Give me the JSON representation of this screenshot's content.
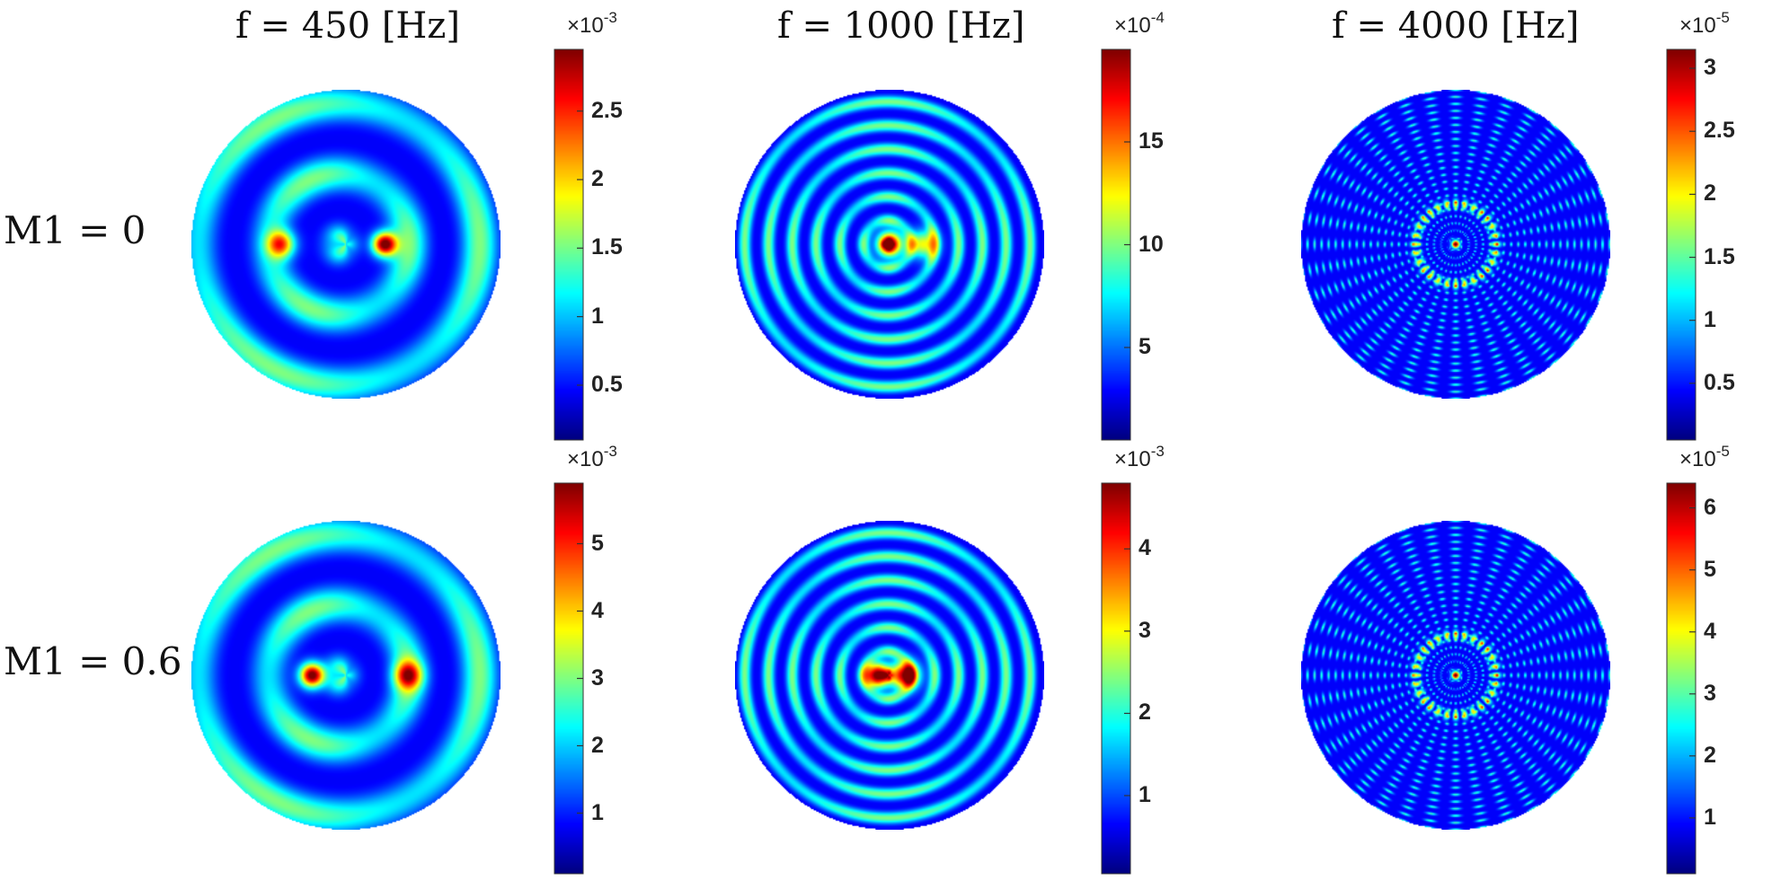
{
  "chart_data": {
    "type": "heatmap",
    "column_titles": [
      "f = 450 [Hz]",
      "f = 1000 [Hz]",
      "f = 4000 [Hz]"
    ],
    "row_labels": [
      "M1 = 0",
      "M1 = 0.6"
    ],
    "colormap": "jet",
    "panels": [
      {
        "row": "M1 = 0",
        "column": "f = 450 [Hz]",
        "colorbar": {
          "exponent": "×10-3",
          "ticks": [
            "0.5",
            "1",
            "1.5",
            "2",
            "2.5"
          ],
          "tick_values": [
            0.5,
            1,
            1.5,
            2,
            2.5
          ],
          "range": [
            0.1,
            2.95
          ]
        },
        "peak_max": 2.95,
        "rings": 2.2,
        "spokes": 3,
        "source_offset": 0.25,
        "secondary_lobe": {
          "offset": -0.42,
          "level": 0.62
        }
      },
      {
        "row": "M1 = 0",
        "column": "f = 1000 [Hz]",
        "colorbar": {
          "exponent": "×10-4",
          "ticks": [
            "5",
            "10",
            "15"
          ],
          "tick_values": [
            5,
            10,
            15
          ],
          "range": [
            0.5,
            19.5
          ]
        },
        "peak_max": 19.5,
        "rings": 6.5,
        "spokes": 4,
        "source_offset": 0.0,
        "secondary_lobe": {
          "offset": 0.22,
          "level": 0.5
        }
      },
      {
        "row": "M1 = 0",
        "column": "f = 4000 [Hz]",
        "colorbar": {
          "exponent": "×10-5",
          "ticks": [
            "0.5",
            "1",
            "1.5",
            "2",
            "2.5",
            "3"
          ],
          "tick_values": [
            0.5,
            1,
            1.5,
            2,
            2.5,
            3
          ],
          "range": [
            0.05,
            3.15
          ]
        },
        "peak_max": 3.15,
        "rings": 22,
        "spokes": 36,
        "source_offset": 0.0,
        "secondary_lobe": {
          "offset": 0.0,
          "level": 0.0
        }
      },
      {
        "row": "M1 = 0.6",
        "column": "f = 450 [Hz]",
        "colorbar": {
          "exponent": "×10-3",
          "ticks": [
            "1",
            "2",
            "3",
            "4",
            "5"
          ],
          "tick_values": [
            1,
            2,
            3,
            4,
            5
          ],
          "range": [
            0.1,
            5.9
          ]
        },
        "peak_max": 5.9,
        "rings": 2.2,
        "spokes": 3,
        "source_offset": -0.22,
        "secondary_lobe": {
          "offset": 0.4,
          "level": 0.55
        }
      },
      {
        "row": "M1 = 0.6",
        "column": "f = 1000 [Hz]",
        "colorbar": {
          "exponent": "×10-3",
          "ticks": [
            "1",
            "2",
            "3",
            "4"
          ],
          "tick_values": [
            1,
            2,
            3,
            4
          ],
          "range": [
            0.05,
            4.8
          ]
        },
        "peak_max": 4.8,
        "rings": 6.5,
        "spokes": 4,
        "source_offset": -0.08,
        "secondary_lobe": {
          "offset": 0.1,
          "level": 0.85
        }
      },
      {
        "row": "M1 = 0.6",
        "column": "f = 4000 [Hz]",
        "colorbar": {
          "exponent": "×10-5",
          "ticks": [
            "1",
            "2",
            "3",
            "4",
            "5",
            "6"
          ],
          "tick_values": [
            1,
            2,
            3,
            4,
            5,
            6
          ],
          "range": [
            0.1,
            6.4
          ]
        },
        "peak_max": 6.4,
        "rings": 22,
        "spokes": 36,
        "source_offset": 0.0,
        "secondary_lobe": {
          "offset": 0.0,
          "level": 0.0
        }
      }
    ]
  }
}
